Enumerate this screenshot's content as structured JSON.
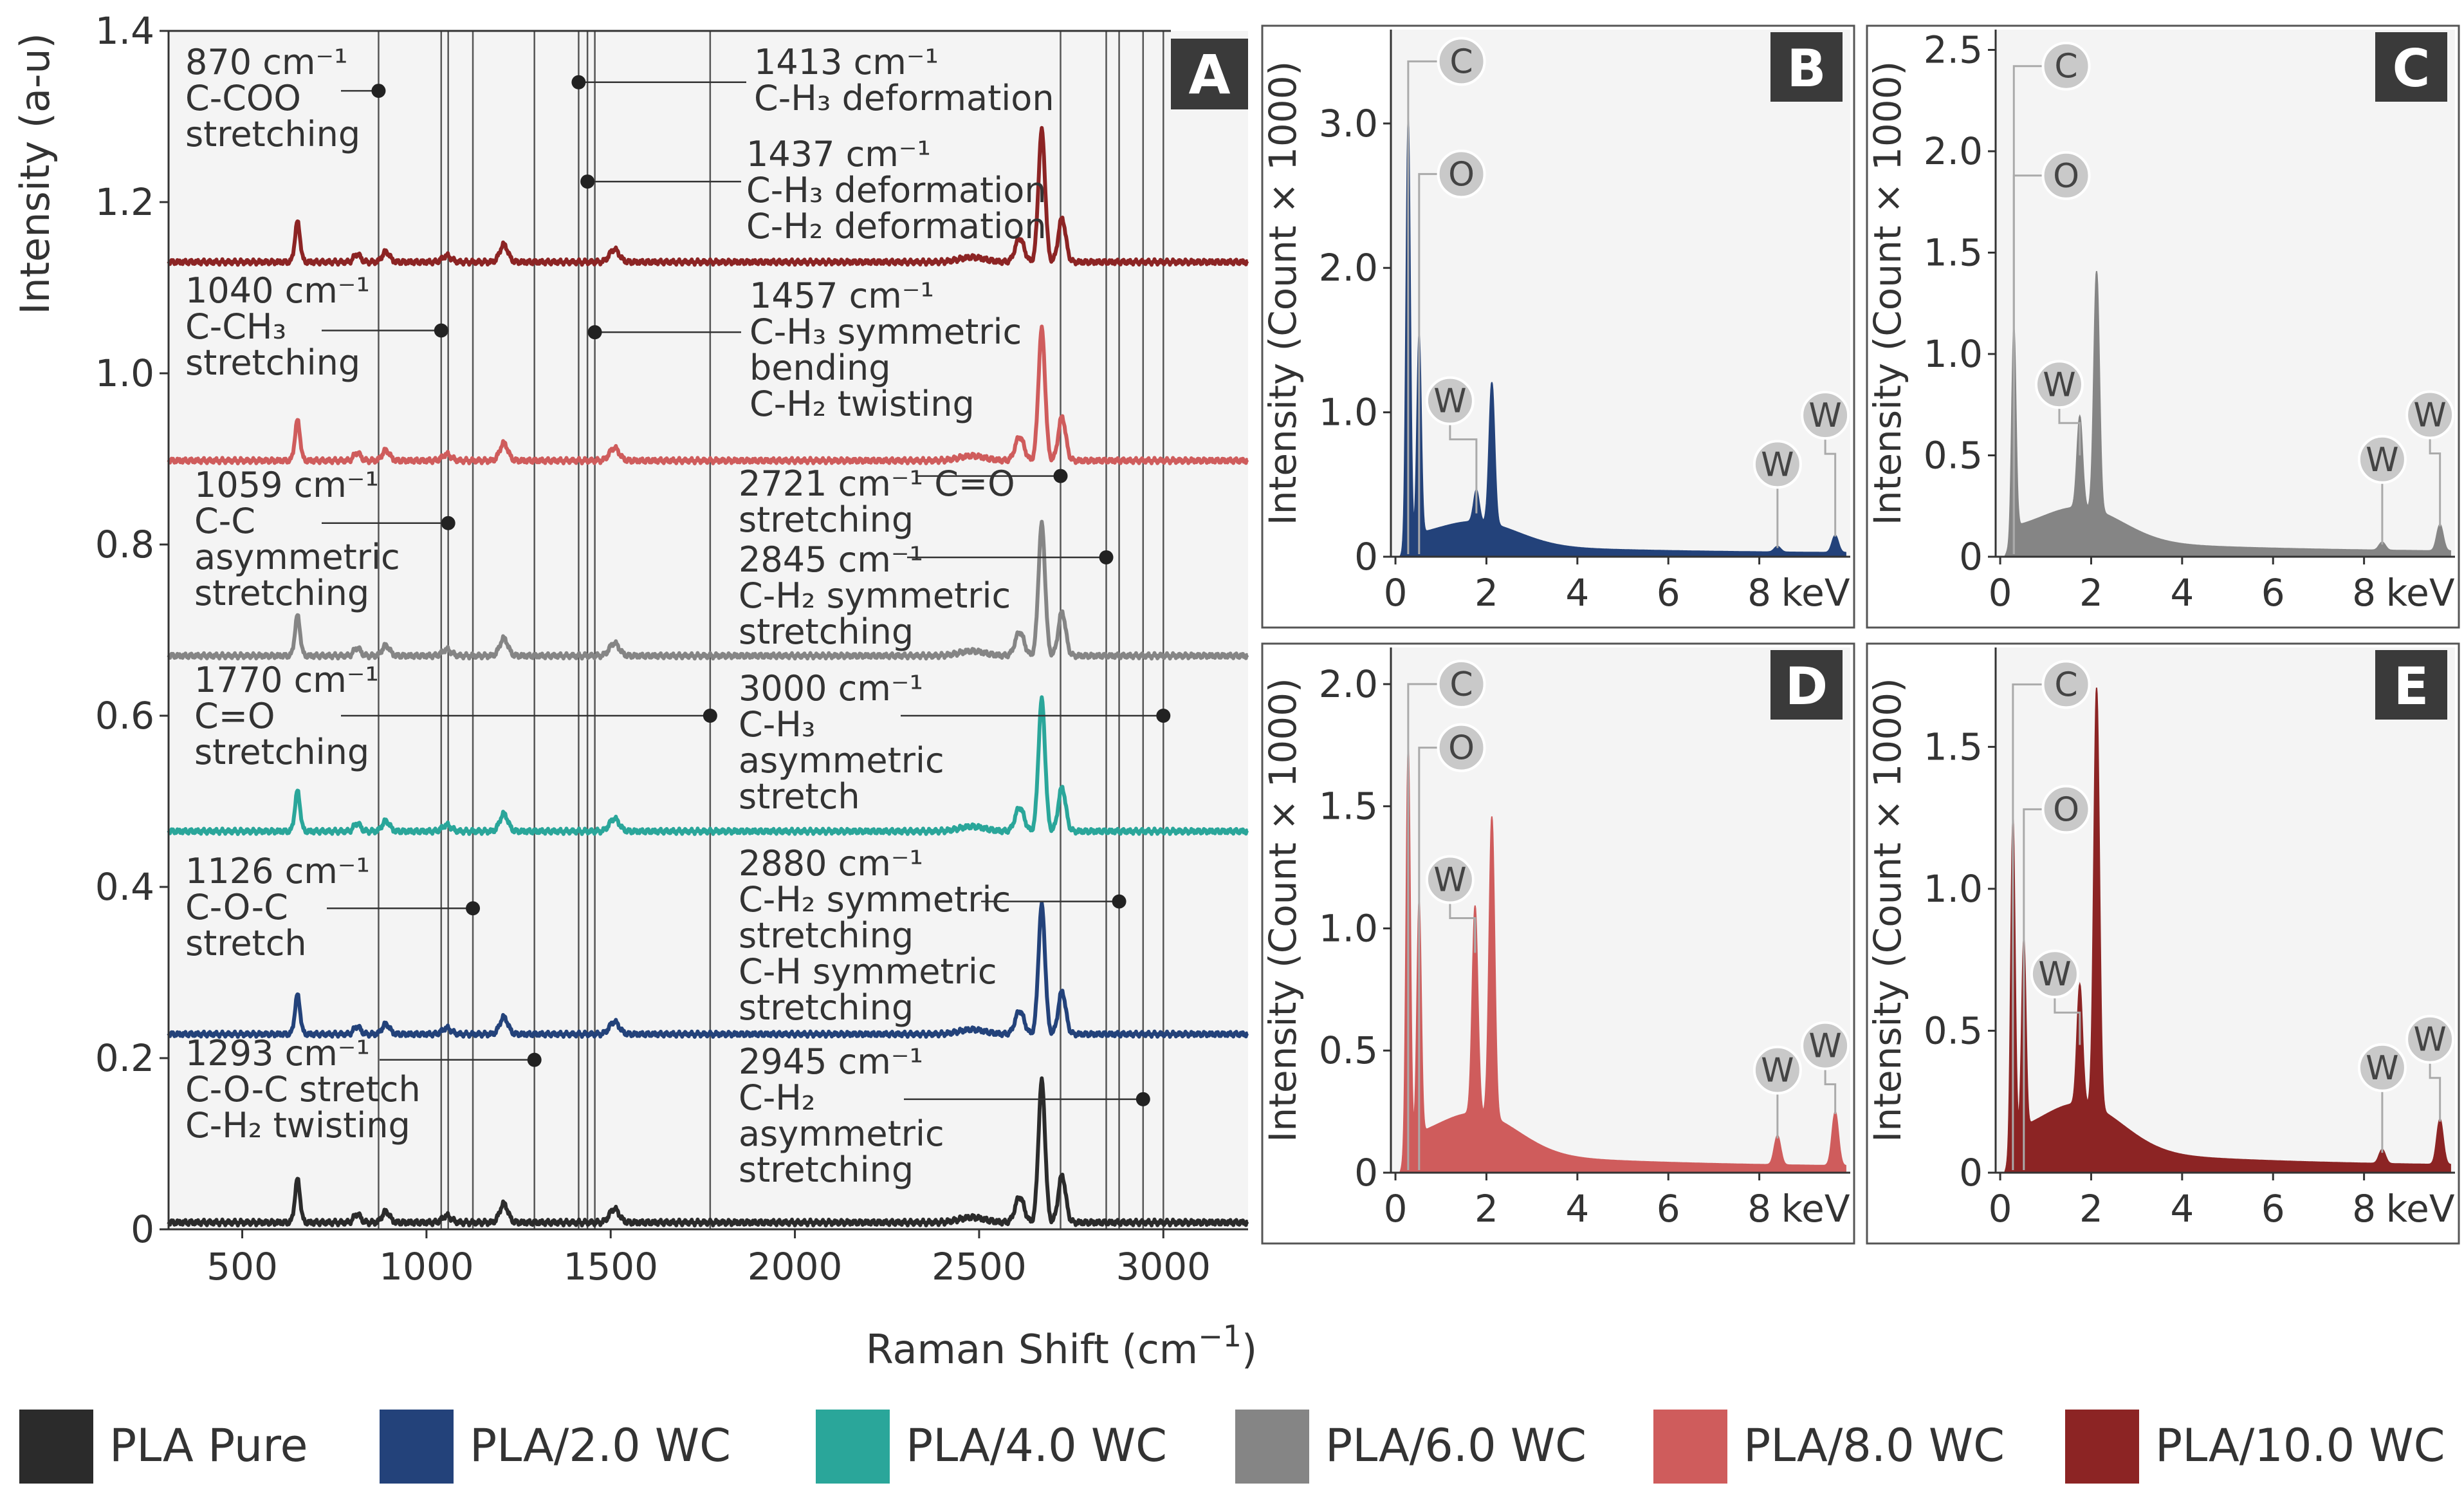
{
  "legend": [
    {
      "name": "PLA Pure",
      "color": "#2b2b2b"
    },
    {
      "name": "PLA/2.0 WC",
      "color": "#23427a"
    },
    {
      "name": "PLA/4.0 WC",
      "color": "#2aa69a"
    },
    {
      "name": "PLA/6.0 WC",
      "color": "#858585"
    },
    {
      "name": "PLA/8.0 WC",
      "color": "#cf5c5c"
    },
    {
      "name": "PLA/10.0 WC",
      "color": "#8c2424"
    }
  ],
  "chart_data": [
    {
      "id": "A",
      "panel_label": "A",
      "type": "line",
      "xlabel": "Raman Shift (cm",
      "xlabel_sup": "−1",
      "xlabel_close": ")",
      "ylabel": "Intensity (a-u)",
      "xlim": [
        300,
        3230
      ],
      "ylim": [
        0,
        1.4
      ],
      "xticks": [
        500,
        1000,
        1500,
        2000,
        2500,
        3000
      ],
      "yticks": [
        "0",
        "0.2",
        "0.4",
        "0.6",
        "0.8",
        "1.0",
        "1.2",
        "1.4"
      ],
      "reference_lines": [
        870,
        1040,
        1059,
        1126,
        1293,
        1413,
        1437,
        1457,
        1770,
        2721,
        2845,
        2880,
        2945,
        3000
      ],
      "series": [
        {
          "name": "PLA Pure",
          "color": "#2b2b2b",
          "baseline": 0.008,
          "scale": 1.0
        },
        {
          "name": "PLA/2.0 WC",
          "color": "#23427a",
          "baseline": 0.228,
          "scale": 0.91
        },
        {
          "name": "PLA/4.0 WC",
          "color": "#2aa69a",
          "baseline": 0.465,
          "scale": 0.93
        },
        {
          "name": "PLA/6.0 WC",
          "color": "#858585",
          "baseline": 0.67,
          "scale": 0.93
        },
        {
          "name": "PLA/8.0 WC",
          "color": "#cf5c5c",
          "baseline": 0.898,
          "scale": 0.93
        },
        {
          "name": "PLA/10.0 WC",
          "color": "#8c2424",
          "baseline": 1.13,
          "scale": 0.93
        }
      ],
      "peaks_cm-1": [
        650,
        812,
        890,
        1055,
        1210,
        1510,
        2610,
        2670,
        2725
      ],
      "annotations": [
        {
          "lines": [
            "870 cm⁻¹",
            "C-COO",
            "stretching"
          ],
          "point": [
            870,
            1.33
          ]
        },
        {
          "lines": [
            "1040 cm⁻¹",
            "C-CH₃",
            "stretching"
          ],
          "point": [
            1040,
            1.05
          ]
        },
        {
          "lines": [
            "1059 cm⁻¹",
            "C-C",
            "asymmetric",
            "stretching"
          ],
          "point": [
            1059,
            0.825
          ]
        },
        {
          "lines": [
            "1770 cm⁻¹",
            "C=O",
            "stretching"
          ],
          "point": [
            1770,
            0.6
          ]
        },
        {
          "lines": [
            "1126 cm⁻¹",
            "C-O-C",
            "stretch"
          ],
          "point": [
            1126,
            0.375
          ]
        },
        {
          "lines": [
            "1293 cm⁻¹",
            "C-O-C stretch",
            "C-H₂ twisting"
          ],
          "point": [
            1293,
            0.198
          ]
        },
        {
          "lines": [
            "1413 cm⁻¹",
            "C-H₃ deformation"
          ],
          "point": [
            1413,
            1.34
          ]
        },
        {
          "lines": [
            "1437 cm⁻¹",
            "C-H₃ deformation",
            "C-H₂ deformation"
          ],
          "point": [
            1437,
            1.224
          ]
        },
        {
          "lines": [
            "1457 cm⁻¹",
            "C-H₃ symmetric",
            "bending",
            "C-H₂ twisting"
          ],
          "point": [
            1457,
            1.048
          ]
        },
        {
          "lines": [
            "2721 cm⁻¹ C=O",
            "stretching"
          ],
          "point": [
            2721,
            0.88
          ]
        },
        {
          "lines": [
            "2845 cm⁻¹",
            "C-H₂ symmetric",
            "stretching"
          ],
          "point": [
            2845,
            0.785
          ]
        },
        {
          "lines": [
            "3000 cm⁻¹",
            "C-H₃",
            "asymmetric",
            "stretch"
          ],
          "point": [
            3000,
            0.6
          ]
        },
        {
          "lines": [
            "2880 cm⁻¹",
            "C-H₂ symmetric",
            "stretching",
            "C-H symmetric",
            "stretching"
          ],
          "point": [
            2880,
            0.383
          ]
        },
        {
          "lines": [
            "2945 cm⁻¹",
            "C-H₂",
            "asymmetric",
            "stretching"
          ],
          "point": [
            2945,
            0.152
          ]
        }
      ]
    },
    {
      "id": "B",
      "panel_label": "B",
      "type": "area",
      "color": "#23427a",
      "xlabel": "keV",
      "ylabel": "Intensity (Count × 1000)",
      "xlim": [
        -0.1,
        10.0
      ],
      "ylim": [
        0,
        3.65
      ],
      "xticks": [
        "0",
        "2",
        "4",
        "6",
        "8"
      ],
      "yticks": [
        "0",
        "1.0",
        "2.0",
        "3.0"
      ],
      "ytick_values": [
        0,
        1.0,
        2.0,
        3.0
      ],
      "peaks": [
        {
          "element": "C",
          "kev": 0.28,
          "height": 2.95
        },
        {
          "element": "O",
          "kev": 0.52,
          "height": 1.38
        },
        {
          "element": "W",
          "kev": 1.78,
          "height": 0.22
        },
        {
          "element": "",
          "kev": 2.12,
          "height": 0.98
        },
        {
          "element": "W",
          "kev": 8.4,
          "height": 0.04
        },
        {
          "element": "W",
          "kev": 9.67,
          "height": 0.12
        }
      ],
      "labels": [
        {
          "text": "C",
          "at": [
            1.45,
            3.43
          ],
          "to": [
            0.28,
            3.43
          ]
        },
        {
          "text": "O",
          "at": [
            1.45,
            2.65
          ],
          "to": [
            0.52,
            2.65
          ]
        },
        {
          "text": "W",
          "at": [
            1.2,
            1.08
          ],
          "to": [
            1.78,
            0.3
          ]
        },
        {
          "text": "W",
          "at": [
            8.4,
            0.64
          ],
          "to": [
            8.4,
            0.06
          ]
        },
        {
          "text": "W",
          "at": [
            9.45,
            0.98
          ],
          "to": [
            9.67,
            0.14
          ]
        }
      ]
    },
    {
      "id": "C",
      "panel_label": "C",
      "type": "area",
      "color": "#858585",
      "xlabel": "keV",
      "ylabel": "Intensity (Count × 1000)",
      "xlim": [
        -0.1,
        10.0
      ],
      "ylim": [
        0,
        2.6
      ],
      "xticks": [
        "0",
        "2",
        "4",
        "6",
        "8"
      ],
      "yticks": [
        "0",
        "0.5",
        "1.0",
        "1.5",
        "2.0",
        "2.5"
      ],
      "ytick_values": [
        0,
        0.5,
        1.0,
        1.5,
        2.0,
        2.5
      ],
      "peaks": [
        {
          "element": "C",
          "kev": 0.3,
          "height": 1.03
        },
        {
          "element": "W",
          "kev": 1.75,
          "height": 0.45
        },
        {
          "element": "",
          "kev": 2.12,
          "height": 1.18
        },
        {
          "element": "W",
          "kev": 8.4,
          "height": 0.04
        },
        {
          "element": "W",
          "kev": 9.67,
          "height": 0.13
        }
      ],
      "labels": [
        {
          "text": "C",
          "at": [
            1.45,
            2.42
          ],
          "to": [
            0.3,
            2.42
          ]
        },
        {
          "text": "O",
          "at": [
            1.45,
            1.88
          ],
          "to": [
            0.3,
            1.88
          ]
        },
        {
          "text": "W",
          "at": [
            1.3,
            0.85
          ],
          "to": [
            1.75,
            0.5
          ]
        },
        {
          "text": "W",
          "at": [
            8.4,
            0.48
          ],
          "to": [
            8.4,
            0.06
          ]
        },
        {
          "text": "W",
          "at": [
            9.45,
            0.7
          ],
          "to": [
            9.67,
            0.15
          ]
        }
      ]
    },
    {
      "id": "D",
      "panel_label": "D",
      "type": "area",
      "color": "#cf5c5c",
      "xlabel": "keV",
      "ylabel": "Intensity (Count × 1000)",
      "xlim": [
        -0.1,
        10.0
      ],
      "ylim": [
        0,
        2.15
      ],
      "xticks": [
        "0",
        "2",
        "4",
        "6",
        "8"
      ],
      "yticks": [
        "0",
        "0.5",
        "1.0",
        "1.5",
        "2.0"
      ],
      "ytick_values": [
        0,
        0.5,
        1.0,
        1.5,
        2.0
      ],
      "peaks": [
        {
          "element": "C",
          "kev": 0.28,
          "height": 1.65
        },
        {
          "element": "O",
          "kev": 0.52,
          "height": 0.95
        },
        {
          "element": "W",
          "kev": 1.75,
          "height": 0.85
        },
        {
          "element": "",
          "kev": 2.12,
          "height": 1.23
        },
        {
          "element": "W",
          "kev": 8.4,
          "height": 0.12
        },
        {
          "element": "W",
          "kev": 9.67,
          "height": 0.22
        }
      ],
      "labels": [
        {
          "text": "C",
          "at": [
            1.45,
            2.0
          ],
          "to": [
            0.28,
            2.0
          ]
        },
        {
          "text": "O",
          "at": [
            1.45,
            1.74
          ],
          "to": [
            0.52,
            1.74
          ]
        },
        {
          "text": "W",
          "at": [
            1.2,
            1.2
          ],
          "to": [
            1.75,
            0.9
          ]
        },
        {
          "text": "W",
          "at": [
            8.4,
            0.42
          ],
          "to": [
            8.4,
            0.14
          ]
        },
        {
          "text": "W",
          "at": [
            9.45,
            0.52
          ],
          "to": [
            9.67,
            0.24
          ]
        }
      ]
    },
    {
      "id": "E",
      "panel_label": "E",
      "type": "area",
      "color": "#8c2424",
      "xlabel": "keV",
      "ylabel": "Intensity (Count × 1000)",
      "xlim": [
        -0.1,
        10.0
      ],
      "ylim": [
        0,
        1.85
      ],
      "xticks": [
        "0",
        "2",
        "4",
        "6",
        "8"
      ],
      "yticks": [
        "0",
        "0.5",
        "1.0",
        "1.5"
      ],
      "ytick_values": [
        0,
        0.5,
        1.0,
        1.5
      ],
      "peaks": [
        {
          "element": "C",
          "kev": 0.28,
          "height": 1.16
        },
        {
          "element": "O",
          "kev": 0.52,
          "height": 0.66
        },
        {
          "element": "W",
          "kev": 1.75,
          "height": 0.42
        },
        {
          "element": "",
          "kev": 2.12,
          "height": 1.48
        },
        {
          "element": "W",
          "kev": 8.4,
          "height": 0.05
        },
        {
          "element": "W",
          "kev": 9.67,
          "height": 0.16
        }
      ],
      "labels": [
        {
          "text": "C",
          "at": [
            1.45,
            1.72
          ],
          "to": [
            0.28,
            1.72
          ]
        },
        {
          "text": "O",
          "at": [
            1.45,
            1.28
          ],
          "to": [
            0.52,
            1.28
          ]
        },
        {
          "text": "W",
          "at": [
            1.2,
            0.7
          ],
          "to": [
            1.75,
            0.45
          ]
        },
        {
          "text": "W",
          "at": [
            8.4,
            0.37
          ],
          "to": [
            8.4,
            0.07
          ]
        },
        {
          "text": "W",
          "at": [
            9.45,
            0.47
          ],
          "to": [
            9.67,
            0.18
          ]
        }
      ]
    }
  ]
}
